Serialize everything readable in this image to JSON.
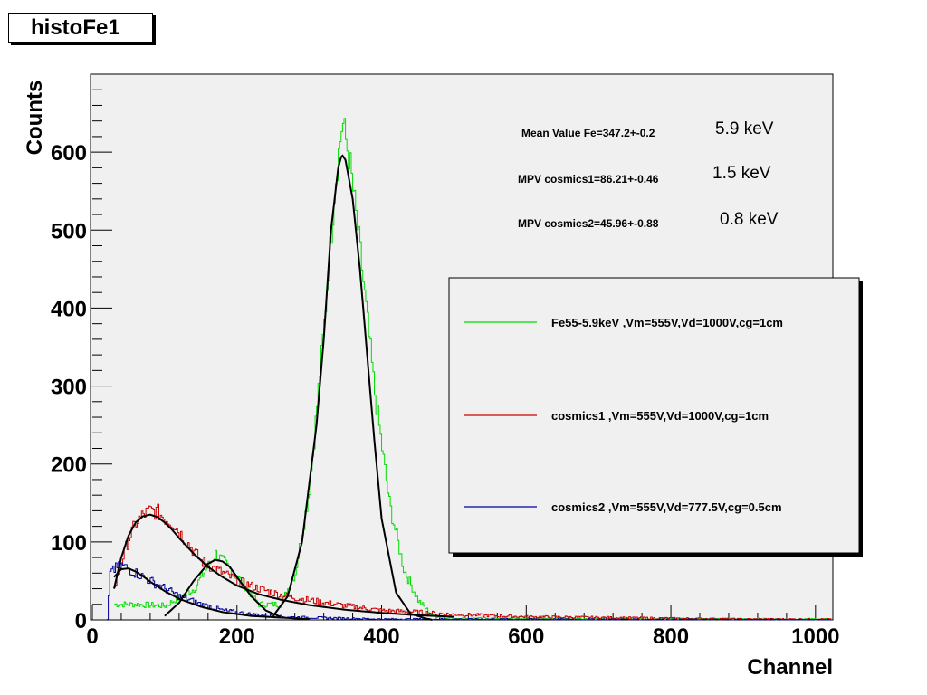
{
  "title": "histoFe1",
  "chart_data": {
    "type": "line",
    "title": "histoFe1",
    "xlabel": "Channel",
    "ylabel": "Counts",
    "xlim": [
      0,
      1024
    ],
    "ylim": [
      0,
      700
    ],
    "x_ticks": [
      0,
      200,
      400,
      600,
      800,
      1000
    ],
    "y_ticks": [
      0,
      100,
      200,
      300,
      400,
      500,
      600
    ],
    "grid": false,
    "legend_position": "right",
    "series": [
      {
        "name": "Fe55-5.9keV ,Vm=555V,Vd=1000V,cg=1cm",
        "color": "#00dd00",
        "style": "histogram",
        "x": [
          30,
          60,
          100,
          140,
          170,
          200,
          230,
          260,
          280,
          300,
          320,
          335,
          345,
          355,
          370,
          390,
          410,
          430,
          450,
          470,
          500,
          1020
        ],
        "y": [
          20,
          20,
          18,
          40,
          85,
          55,
          20,
          20,
          60,
          170,
          380,
          560,
          640,
          590,
          470,
          290,
          150,
          65,
          25,
          5,
          2,
          1
        ]
      },
      {
        "name": "cosmics1 ,Vm=555V,Vd=1000V,cg=1cm",
        "color": "#cc0000",
        "style": "histogram",
        "x": [
          30,
          40,
          50,
          60,
          70,
          80,
          90,
          100,
          110,
          130,
          150,
          170,
          200,
          230,
          260,
          300,
          350,
          400,
          450,
          500,
          600,
          700,
          800,
          900,
          1020
        ],
        "y": [
          40,
          75,
          105,
          125,
          135,
          140,
          138,
          130,
          125,
          100,
          75,
          65,
          50,
          40,
          32,
          25,
          18,
          12,
          10,
          7,
          4,
          3,
          2,
          1,
          1
        ]
      },
      {
        "name": "cosmics2 ,Vm=555V,Vd=777.5V,cg=0.5cm",
        "color": "#000099",
        "style": "histogram",
        "x": [
          20,
          25,
          30,
          40,
          50,
          60,
          70,
          80,
          100,
          120,
          150,
          180,
          220,
          260,
          300,
          350,
          400,
          500,
          1020
        ],
        "y": [
          0,
          70,
          65,
          70,
          65,
          60,
          55,
          50,
          40,
          30,
          20,
          12,
          7,
          4,
          3,
          2,
          1,
          1,
          0
        ]
      }
    ],
    "fits": [
      {
        "name": "Fe55 gaussian fit",
        "color": "#000000",
        "x": [
          250,
          270,
          290,
          310,
          320,
          330,
          340,
          345,
          350,
          360,
          370,
          380,
          390,
          400,
          420,
          440,
          460,
          470
        ],
        "y": [
          5,
          30,
          100,
          250,
          360,
          500,
          580,
          597,
          590,
          540,
          450,
          340,
          230,
          130,
          35,
          8,
          2,
          0
        ]
      },
      {
        "name": "cosmics1 landau fit",
        "color": "#000000",
        "x": [
          30,
          40,
          50,
          60,
          70,
          80,
          90,
          100,
          110,
          120,
          140,
          160,
          180,
          200,
          230,
          260,
          300,
          350,
          400,
          450,
          500
        ],
        "y": [
          40,
          80,
          108,
          125,
          133,
          135,
          132,
          125,
          116,
          105,
          85,
          68,
          55,
          44,
          33,
          26,
          19,
          13,
          9,
          6,
          4
        ]
      },
      {
        "name": "cosmics2 landau fit",
        "color": "#000000",
        "x": [
          30,
          40,
          50,
          60,
          70,
          80,
          100,
          120,
          150,
          180,
          220,
          260,
          300
        ],
        "y": [
          55,
          65,
          66,
          62,
          56,
          49,
          37,
          27,
          17,
          10,
          5,
          3,
          1
        ]
      },
      {
        "name": "low-energy peak fit",
        "color": "#000000",
        "x": [
          100,
          120,
          140,
          160,
          170,
          180,
          190,
          200,
          220,
          240,
          260
        ],
        "y": [
          5,
          22,
          50,
          72,
          77,
          75,
          68,
          55,
          30,
          12,
          4
        ]
      }
    ],
    "annotations": [
      {
        "text": "Mean Value Fe=347.2+-0.2",
        "energy": "5.9 keV"
      },
      {
        "text": "MPV cosmics1=86.21+-0.46",
        "energy": "1.5 keV"
      },
      {
        "text": "MPV cosmics2=45.96+-0.88",
        "energy": "0.8 keV"
      }
    ]
  }
}
